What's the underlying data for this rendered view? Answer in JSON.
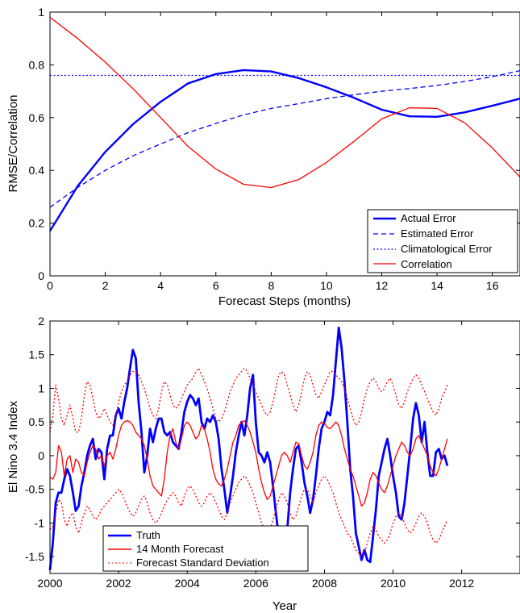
{
  "chart_data": [
    {
      "type": "line",
      "xlabel": "Forecast Steps (months)",
      "ylabel": "RMSE/Correlation",
      "xlim": [
        0,
        17
      ],
      "ylim": [
        0,
        1
      ],
      "xticks": [
        "0",
        "2",
        "4",
        "6",
        "8",
        "10",
        "12",
        "14",
        "16"
      ],
      "yticks": [
        "0",
        "0.2",
        "0.4",
        "0.6",
        "0.8",
        "1"
      ],
      "grid": false,
      "legend_position": "bottom-right",
      "x": [
        0,
        1,
        2,
        3,
        4,
        5,
        6,
        7,
        8,
        9,
        10,
        11,
        12,
        13,
        14,
        15,
        16,
        17
      ],
      "series": [
        {
          "name": "Actual Error",
          "color": "#0000ff",
          "style": "solid",
          "width": "thick",
          "values": [
            0.17,
            0.34,
            0.47,
            0.575,
            0.66,
            0.73,
            0.765,
            0.78,
            0.775,
            0.75,
            0.715,
            0.675,
            0.63,
            0.605,
            0.603,
            0.62,
            0.645,
            0.672
          ]
        },
        {
          "name": "Estimated Error",
          "color": "#0000ff",
          "style": "dashed",
          "width": "thin",
          "values": [
            0.26,
            0.335,
            0.4,
            0.455,
            0.5,
            0.543,
            0.578,
            0.61,
            0.635,
            0.653,
            0.672,
            0.687,
            0.7,
            0.71,
            0.722,
            0.737,
            0.755,
            0.778
          ]
        },
        {
          "name": "Climatological Error",
          "color": "#0000ff",
          "style": "dotted",
          "width": "thin",
          "values": [
            0.76,
            0.76,
            0.76,
            0.76,
            0.76,
            0.76,
            0.76,
            0.76,
            0.76,
            0.76,
            0.76,
            0.76,
            0.76,
            0.76,
            0.76,
            0.76,
            0.76,
            0.76
          ]
        },
        {
          "name": "Correlation",
          "color": "#ff0000",
          "style": "solid",
          "width": "thin",
          "values": [
            0.98,
            0.9,
            0.81,
            0.71,
            0.6,
            0.49,
            0.405,
            0.347,
            0.335,
            0.365,
            0.43,
            0.51,
            0.595,
            0.637,
            0.635,
            0.58,
            0.485,
            0.375
          ]
        }
      ]
    },
    {
      "type": "line",
      "xlabel": "Year",
      "ylabel": "El Nino 3.4 Index",
      "xlim": [
        2000,
        2013.7
      ],
      "ylim": [
        -1.75,
        2
      ],
      "xticks": [
        "2000",
        "2002",
        "2004",
        "2006",
        "2008",
        "2010",
        "2012"
      ],
      "yticks": [
        "-1.5",
        "-1",
        "-0.5",
        "0",
        "0.5",
        "1",
        "1.5",
        "2"
      ],
      "grid": false,
      "legend_position": "bottom-left",
      "x_start": 2000,
      "x_step_months": 1,
      "series": [
        {
          "name": "Truth",
          "color": "#0000ff",
          "style": "solid",
          "width": "thick",
          "values": [
            -1.7,
            -1.3,
            -0.7,
            -0.55,
            -0.55,
            -0.35,
            -0.2,
            -0.3,
            -0.55,
            -0.82,
            -0.75,
            -0.45,
            -0.25,
            0,
            0.15,
            0.25,
            -0.05,
            0.1,
            0.05,
            -0.35,
            0.1,
            0.3,
            0.3,
            0.6,
            0.7,
            0.55,
            0.8,
            1.0,
            1.3,
            1.57,
            1.45,
            0.8,
            0.35,
            -0.25,
            0,
            0.4,
            0.2,
            0.4,
            0.55,
            0.55,
            0.35,
            0.3,
            0.35,
            0.2,
            0.15,
            0.1,
            0.35,
            0.65,
            0.8,
            0.9,
            0.85,
            0.75,
            0.85,
            0.5,
            0.4,
            0.55,
            0.5,
            0.6,
            0.5,
            0.25,
            -0.2,
            -0.5,
            -0.85,
            -0.6,
            -0.3,
            0.05,
            0.3,
            0.5,
            0.3,
            0.6,
            1.0,
            1.2,
            0.5,
            0.05,
            0,
            -0.1,
            0.05,
            -0.1,
            -0.45,
            -0.85,
            -1.2,
            -1.5,
            -1.65,
            -1.1,
            -0.55,
            -0.2,
            0.1,
            0.15,
            -0.1,
            -0.4,
            -0.6,
            -0.85,
            -0.65,
            -0.3,
            0.1,
            0.4,
            0.5,
            0.65,
            0.6,
            0.9,
            1.4,
            1.9,
            1.6,
            1.1,
            0.5,
            -0.2,
            -0.6,
            -1.15,
            -1.35,
            -1.55,
            -1.4,
            -1.55,
            -1.58,
            -1.2,
            -0.8,
            -0.3,
            -0.1,
            0.1,
            0.25,
            0,
            -0.3,
            -0.55,
            -0.9,
            -0.95,
            -0.7,
            -0.3,
            0.1,
            0.55,
            0.78,
            0.6,
            0.2,
            0.5,
            0.05,
            -0.3,
            -0.3,
            0.05,
            0.1,
            -0.05,
            0,
            -0.15
          ]
        },
        {
          "name": "14 Month Forecast",
          "color": "#ff0000",
          "style": "solid",
          "width": "thin",
          "values": [
            -0.32,
            -0.35,
            -0.25,
            0.15,
            0.05,
            -0.3,
            -0.05,
            0,
            -0.25,
            -0.05,
            -0.1,
            -0.25,
            -0.3,
            -0.1,
            0.05,
            0.15,
            0.1,
            -0.05,
            0,
            -0.15,
            0,
            0.05,
            -0.05,
            0.1,
            0.3,
            0.45,
            0.5,
            0.52,
            0.5,
            0.45,
            0.35,
            0.3,
            0.25,
            0.15,
            -0.05,
            -0.3,
            -0.45,
            -0.5,
            -0.55,
            -0.6,
            -0.35,
            0.05,
            0.3,
            0.4,
            0.2,
            0.1,
            0.25,
            0.45,
            0.5,
            0.45,
            0.35,
            0.25,
            0.3,
            0.45,
            0.4,
            0.25,
            0.05,
            -0.2,
            -0.35,
            -0.42,
            -0.45,
            -0.35,
            -0.2,
            0,
            0.2,
            0.3,
            0.45,
            0.5,
            0.52,
            0.45,
            0.35,
            0.2,
            0.05,
            -0.2,
            -0.4,
            -0.55,
            -0.65,
            -0.6,
            -0.45,
            -0.3,
            -0.15,
            0,
            0.05,
            0,
            -0.1,
            0.05,
            0.2,
            0.18,
            0,
            -0.15,
            -0.2,
            -0.1,
            0.05,
            0.3,
            0.45,
            0.5,
            0.48,
            0.42,
            0.4,
            0.45,
            0.5,
            0.45,
            0.3,
            0.1,
            -0.05,
            -0.2,
            -0.3,
            -0.45,
            -0.6,
            -0.75,
            -0.7,
            -0.55,
            -0.35,
            -0.25,
            -0.3,
            -0.4,
            -0.5,
            -0.55,
            -0.45,
            -0.3,
            -0.15,
            0,
            0.1,
            0.2,
            0.15,
            0.05,
            0,
            0.1,
            0.25,
            0.3,
            0.2,
            0.1,
            0,
            -0.15,
            -0.25,
            -0.3,
            -0.2,
            -0.05,
            0.1,
            0.25
          ]
        },
        {
          "name": "Forecast Standard Deviation",
          "color": "#ff0000",
          "style": "dotted",
          "width": "thin",
          "values_upper": [
            0.35,
            0.6,
            1.05,
            0.85,
            0.55,
            0.45,
            0.6,
            0.75,
            0.55,
            0.35,
            0.35,
            0.55,
            0.9,
            1.1,
            1.05,
            0.85,
            0.65,
            0.55,
            0.6,
            0.7,
            0.6,
            0.5,
            0.45,
            0.6,
            0.8,
            0.95,
            1.05,
            1.1,
            1.2,
            1.25,
            1.25,
            1.2,
            1.1,
            1.0,
            0.85,
            0.7,
            0.6,
            0.55,
            0.7,
            0.95,
            1.1,
            1.05,
            0.9,
            0.75,
            0.7,
            0.75,
            0.85,
            0.95,
            1.05,
            1.1,
            1.15,
            1.25,
            1.3,
            1.2,
            1.1,
            1.0,
            0.85,
            0.7,
            0.55,
            0.5,
            0.55,
            0.65,
            0.8,
            0.95,
            1.05,
            1.15,
            1.2,
            1.25,
            1.3,
            1.25,
            1.15,
            1.05,
            0.95,
            0.85,
            0.75,
            0.65,
            0.6,
            0.65,
            0.8,
            1.0,
            1.2,
            1.25,
            1.2,
            1.05,
            0.9,
            0.75,
            0.65,
            0.75,
            0.95,
            1.15,
            1.25,
            1.2,
            1.05,
            0.9,
            0.85,
            0.95,
            1.05,
            1.15,
            1.25,
            1.25,
            1.2,
            1.15,
            1.1,
            1.0,
            0.85,
            0.7,
            0.55,
            0.45,
            0.5,
            0.65,
            0.85,
            1.0,
            1.1,
            1.15,
            1.1,
            1.0,
            0.95,
            1.0,
            1.1,
            1.15,
            1.05,
            0.9,
            0.75,
            0.7,
            0.8,
            0.95,
            1.05,
            1.15,
            1.2,
            1.15,
            1.05,
            0.95,
            0.85,
            0.75,
            0.65,
            0.6,
            0.7,
            0.85,
            0.95,
            1.05
          ],
          "values_lower": [
            -1.1,
            -1.05,
            -0.85,
            -0.65,
            -0.7,
            -0.95,
            -1.05,
            -0.9,
            -0.85,
            -1.05,
            -1.15,
            -1.0,
            -0.85,
            -0.75,
            -0.8,
            -0.9,
            -0.95,
            -0.9,
            -0.8,
            -0.75,
            -0.7,
            -0.65,
            -0.6,
            -0.55,
            -0.5,
            -0.55,
            -0.65,
            -0.75,
            -0.85,
            -0.9,
            -0.85,
            -0.75,
            -0.65,
            -0.6,
            -0.7,
            -0.85,
            -0.95,
            -1.0,
            -0.95,
            -0.85,
            -0.75,
            -0.65,
            -0.6,
            -0.55,
            -0.6,
            -0.7,
            -0.75,
            -0.6,
            -0.5,
            -0.45,
            -0.5,
            -0.6,
            -0.7,
            -0.75,
            -0.7,
            -0.6,
            -0.55,
            -0.6,
            -0.7,
            -0.8,
            -0.9,
            -0.95,
            -0.85,
            -0.7,
            -0.6,
            -0.5,
            -0.4,
            -0.35,
            -0.3,
            -0.35,
            -0.45,
            -0.55,
            -0.7,
            -0.85,
            -1.0,
            -1.1,
            -1.15,
            -1.1,
            -0.95,
            -0.8,
            -0.65,
            -0.55,
            -0.6,
            -0.7,
            -0.85,
            -0.95,
            -0.9,
            -0.75,
            -0.6,
            -0.5,
            -0.5,
            -0.6,
            -0.7,
            -0.55,
            -0.45,
            -0.35,
            -0.3,
            -0.35,
            -0.45,
            -0.55,
            -0.7,
            -0.85,
            -0.95,
            -1.05,
            -1.15,
            -1.2,
            -1.3,
            -1.4,
            -1.45,
            -1.5,
            -1.45,
            -1.3,
            -1.15,
            -1.05,
            -1.1,
            -1.2,
            -1.25,
            -1.3,
            -1.25,
            -1.15,
            -1.0,
            -0.9,
            -0.85,
            -0.9,
            -1.0,
            -1.1,
            -1.15,
            -1.1,
            -1.0,
            -0.9,
            -0.85,
            -0.9,
            -1.0,
            -1.15,
            -1.25,
            -1.3,
            -1.25,
            -1.15,
            -1.05,
            -0.95
          ]
        }
      ]
    }
  ]
}
